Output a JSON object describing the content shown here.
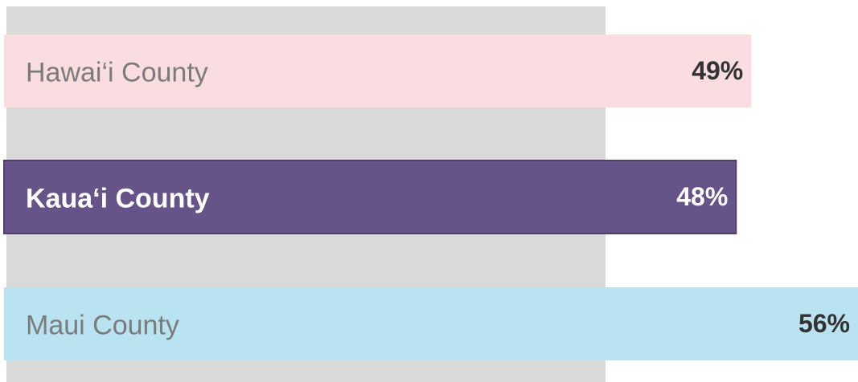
{
  "chart_data": {
    "type": "hbar",
    "categories": [
      "Hawai‘i County",
      "Kaua‘i County",
      "Maui County"
    ],
    "values": [
      49,
      48,
      56
    ],
    "value_labels": [
      "49%",
      "48%",
      "56%"
    ],
    "colors": [
      "#f9dde0",
      "#665489",
      "#bae3f2"
    ],
    "label_colors": [
      "#7b7b7b",
      "#ffffff",
      "#7b7b7b"
    ],
    "value_label_color": "#333333",
    "xlim": [
      0,
      56
    ]
  }
}
